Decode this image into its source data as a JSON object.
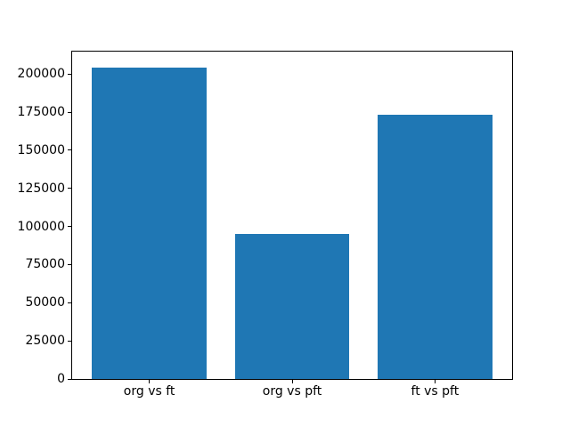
{
  "chart_data": {
    "type": "bar",
    "title": "",
    "xlabel": "",
    "ylabel": "",
    "categories": [
      "org vs ft",
      "org vs pft",
      "ft vs pft"
    ],
    "values": [
      204500,
      95000,
      173200
    ],
    "yticks": [
      0,
      25000,
      50000,
      75000,
      100000,
      125000,
      150000,
      175000,
      200000
    ],
    "ytick_labels": [
      "0",
      "25000",
      "50000",
      "75000",
      "100000",
      "125000",
      "150000",
      "175000",
      "200000"
    ],
    "ylim": [
      0,
      214725
    ],
    "xlim": [
      -0.54,
      2.54
    ],
    "bar_positions": [
      0,
      1,
      2
    ],
    "bar_width": 0.8,
    "bar_color": "#1f77b4",
    "axis_color": "#000000",
    "background_color": "#ffffff",
    "grid": false,
    "legend": null
  }
}
